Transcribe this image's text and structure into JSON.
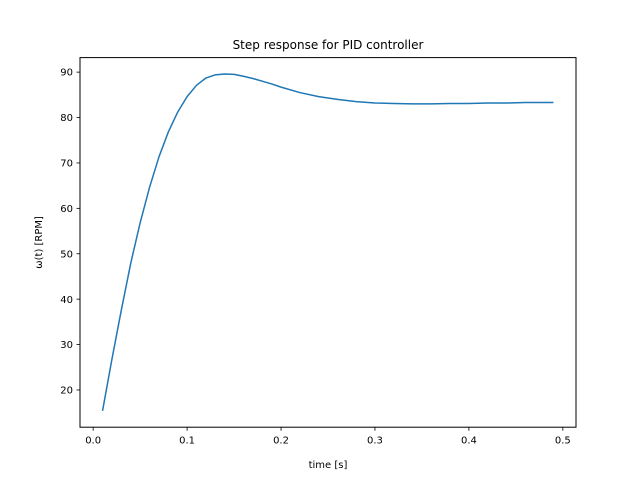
{
  "chart_data": {
    "type": "line",
    "title": "Step response for PID controller",
    "xlabel": "time [s]",
    "ylabel": "ω(t) [RPM]",
    "xlim": [
      -0.014,
      0.514
    ],
    "ylim": [
      11.8,
      93.2
    ],
    "xticks": [
      0.0,
      0.1,
      0.2,
      0.3,
      0.4,
      0.5
    ],
    "xtick_labels": [
      "0.0",
      "0.1",
      "0.2",
      "0.3",
      "0.4",
      "0.5"
    ],
    "yticks": [
      20,
      30,
      40,
      50,
      60,
      70,
      80,
      90
    ],
    "ytick_labels": [
      "20",
      "30",
      "40",
      "50",
      "60",
      "70",
      "80",
      "90"
    ],
    "grid": false,
    "series": [
      {
        "color": "#1f77b4",
        "x": [
          0.01,
          0.02,
          0.03,
          0.04,
          0.05,
          0.06,
          0.07,
          0.08,
          0.09,
          0.1,
          0.11,
          0.12,
          0.13,
          0.14,
          0.15,
          0.16,
          0.17,
          0.18,
          0.19,
          0.2,
          0.22,
          0.24,
          0.26,
          0.28,
          0.3,
          0.32,
          0.34,
          0.36,
          0.38,
          0.4,
          0.42,
          0.44,
          0.46,
          0.49
        ],
        "y": [
          15.4,
          26.8,
          37.6,
          47.9,
          56.8,
          64.6,
          71.3,
          76.8,
          81.2,
          84.6,
          87.1,
          88.7,
          89.4,
          89.6,
          89.5,
          89.1,
          88.6,
          88.0,
          87.4,
          86.7,
          85.5,
          84.6,
          84.0,
          83.5,
          83.2,
          83.1,
          83.0,
          83.0,
          83.1,
          83.1,
          83.2,
          83.2,
          83.3,
          83.3
        ]
      }
    ]
  }
}
